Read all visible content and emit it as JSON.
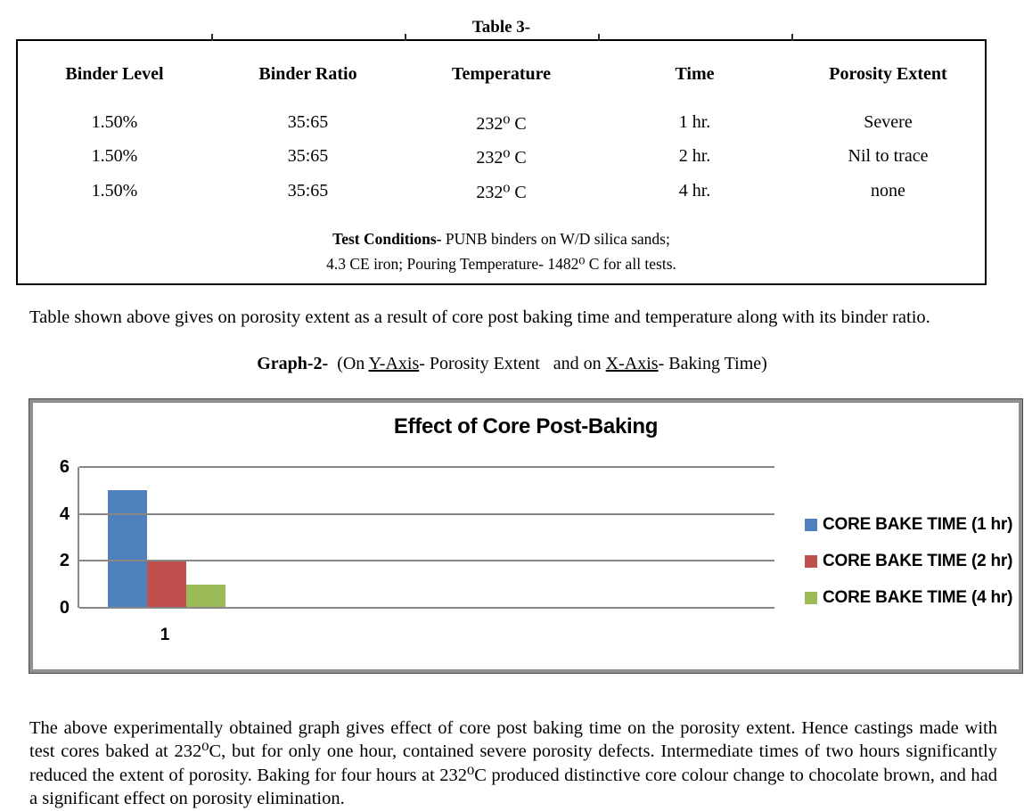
{
  "table3": {
    "caption": "Table 3-",
    "headers": [
      "Binder Level",
      "Binder Ratio",
      "Temperature",
      "Time",
      "Porosity Extent"
    ],
    "rows": [
      [
        "1.50%",
        "35:65",
        "232⁰ C",
        "1 hr.",
        "Severe"
      ],
      [
        "1.50%",
        "35:65",
        "232⁰ C",
        "2 hr.",
        "Nil to trace"
      ],
      [
        "1.50%",
        "35:65",
        "232⁰ C",
        "4 hr.",
        "none"
      ]
    ],
    "test_conditions": {
      "label": "Test Conditions-",
      "line1_rest": " PUNB binders on W/D silica sands;",
      "line2": "4.3 CE iron; Pouring Temperature- 1482⁰ C for all tests."
    }
  },
  "paragraph_table": "Table shown above gives on porosity extent as a result of core post baking time and temperature along with its binder ratio.",
  "graph_caption": {
    "label": "Graph-2-",
    "pre": "  (On ",
    "y_axis": "Y-Axis",
    "mid": "- Porosity Extent   and on ",
    "x_axis": "X-Axis",
    "post": "- Baking Time)"
  },
  "chart_data": {
    "type": "bar",
    "title": "Effect of Core Post-Baking",
    "categories": [
      "1"
    ],
    "series": [
      {
        "name": "CORE BAKE TIME (1 hr)",
        "color": "#4F81BD",
        "values": [
          5
        ]
      },
      {
        "name": "CORE BAKE TIME (2 hr)",
        "color": "#C0504D",
        "values": [
          2
        ]
      },
      {
        "name": "CORE BAKE TIME (4 hr)",
        "color": "#9BBB59",
        "values": [
          1
        ]
      }
    ],
    "xlabel": "Baking Time",
    "ylabel": "Porosity Extent",
    "ylim": [
      0,
      6
    ],
    "yticks": [
      0,
      2,
      4,
      6
    ],
    "grid": true,
    "legend_position": "right",
    "axis_color": "#878787",
    "frame_border_color": "#8f8f8f"
  },
  "paragraph_graph": "The above experimentally obtained graph gives effect of core post baking time on the porosity extent. Hence  castings made with test cores baked at 232⁰C, but for only one hour, contained severe porosity defects. Intermediate times of two hours significantly reduced the extent of porosity. Baking for four hours at 232⁰C produced distinctive core colour change to chocolate brown, and had a significant effect on porosity elimination."
}
